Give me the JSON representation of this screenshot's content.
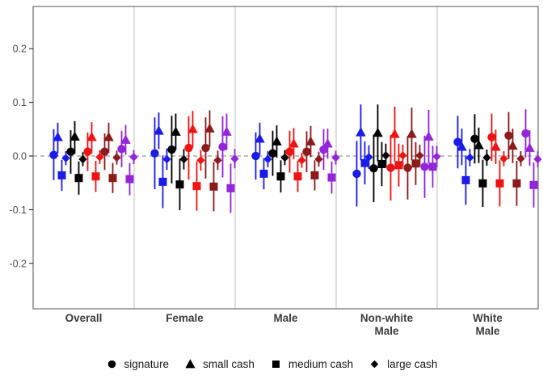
{
  "figure": {
    "background": "#ffffff",
    "panel_border_color": "#6e6e6e",
    "facet_divider_color": "#d9d9d9",
    "zero_line_color": "#999999",
    "tick_label_color": "#4a4a4a",
    "facet_label_color": "#3c3c3c"
  },
  "y_axis": {
    "tick_labels": [
      "0.2",
      "0.1",
      "0.0",
      "-0.1",
      "-0.2"
    ],
    "tick_values": [
      0.2,
      0.1,
      0.0,
      -0.1,
      -0.2
    ]
  },
  "facet_label_lines": [
    [
      "Overall"
    ],
    [
      "Female"
    ],
    [
      "Male"
    ],
    [
      "Non-white",
      "Male"
    ],
    [
      "White",
      "Male"
    ]
  ],
  "legend": {
    "items": [
      {
        "shape": "circle",
        "icon": "circle-marker-icon",
        "label": "signature"
      },
      {
        "shape": "triangle",
        "icon": "triangle-marker-icon",
        "label": "small cash"
      },
      {
        "shape": "square",
        "icon": "square-marker-icon",
        "label": "medium cash"
      },
      {
        "shape": "diamond",
        "icon": "diamond-marker-icon",
        "label": "large cash"
      }
    ],
    "marker_color": "#000000"
  },
  "chart_data": {
    "type": "pointrange",
    "title": "",
    "xlabel": "",
    "ylabel": "",
    "ylim": [
      -0.28,
      0.28
    ],
    "y_ticks": [
      0.2,
      0.1,
      0.0,
      -0.1,
      -0.2
    ],
    "grid": false,
    "zero_reference_line": 0.0,
    "legend_position": "bottom",
    "facets": [
      "Overall",
      "Female",
      "Male",
      "Non-white Male",
      "White Male"
    ],
    "shape_order": [
      "circle",
      "triangle",
      "square",
      "diamond"
    ],
    "shape_legend": {
      "circle": "signature",
      "triangle": "small cash",
      "square": "medium cash",
      "diamond": "large cash"
    },
    "color_order": [
      "blue",
      "black",
      "red",
      "darkred",
      "purple"
    ],
    "colors": {
      "blue": "#1c1ce8",
      "black": "#000000",
      "red": "#ee1414",
      "darkred": "#8c1c1c",
      "purple": "#9326d9"
    },
    "points_format": "[estimate, ci_low, ci_high] per shape in shape_order",
    "values": {
      "Overall": {
        "blue": [
          [
            0.002,
            -0.045,
            0.05
          ],
          [
            0.035,
            0.005,
            0.062
          ],
          [
            -0.036,
            -0.065,
            -0.007
          ],
          [
            -0.004,
            -0.017,
            0.009
          ]
        ],
        "black": [
          [
            0.008,
            -0.033,
            0.048
          ],
          [
            0.036,
            0.004,
            0.065
          ],
          [
            -0.041,
            -0.072,
            -0.01
          ],
          [
            -0.006,
            -0.019,
            0.007
          ]
        ],
        "red": [
          [
            0.008,
            -0.028,
            0.044
          ],
          [
            0.035,
            0.005,
            0.063
          ],
          [
            -0.038,
            -0.067,
            -0.009
          ],
          [
            -0.002,
            -0.015,
            0.011
          ]
        ],
        "darkred": [
          [
            0.008,
            -0.026,
            0.042
          ],
          [
            0.035,
            0.006,
            0.062
          ],
          [
            -0.041,
            -0.069,
            -0.013
          ],
          [
            -0.003,
            -0.016,
            0.01
          ]
        ],
        "purple": [
          [
            0.013,
            -0.021,
            0.047
          ],
          [
            0.03,
            0.002,
            0.058
          ],
          [
            -0.043,
            -0.073,
            -0.013
          ],
          [
            -0.002,
            -0.015,
            0.011
          ]
        ]
      },
      "Female": {
        "blue": [
          [
            0.005,
            -0.062,
            0.072
          ],
          [
            0.047,
            0.013,
            0.081
          ],
          [
            -0.048,
            -0.097,
            0.001
          ],
          [
            -0.006,
            -0.026,
            0.014
          ]
        ],
        "black": [
          [
            0.012,
            -0.051,
            0.075
          ],
          [
            0.045,
            0.011,
            0.079
          ],
          [
            -0.053,
            -0.101,
            -0.005
          ],
          [
            -0.006,
            -0.025,
            0.013
          ]
        ],
        "red": [
          [
            0.015,
            -0.044,
            0.074
          ],
          [
            0.05,
            0.016,
            0.084
          ],
          [
            -0.056,
            -0.102,
            -0.01
          ],
          [
            -0.008,
            -0.027,
            0.011
          ]
        ],
        "darkred": [
          [
            0.015,
            -0.042,
            0.072
          ],
          [
            0.051,
            0.017,
            0.085
          ],
          [
            -0.057,
            -0.103,
            -0.011
          ],
          [
            -0.008,
            -0.026,
            0.01
          ]
        ],
        "purple": [
          [
            0.017,
            -0.04,
            0.074
          ],
          [
            0.045,
            0.011,
            0.079
          ],
          [
            -0.06,
            -0.106,
            -0.014
          ],
          [
            -0.005,
            -0.023,
            0.013
          ]
        ]
      },
      "Male": {
        "blue": [
          [
            0.0,
            -0.044,
            0.044
          ],
          [
            0.032,
            0.002,
            0.062
          ],
          [
            -0.033,
            -0.062,
            -0.004
          ],
          [
            -0.006,
            -0.021,
            0.009
          ]
        ],
        "black": [
          [
            0.005,
            -0.037,
            0.047
          ],
          [
            0.027,
            -0.003,
            0.057
          ],
          [
            -0.038,
            -0.068,
            -0.008
          ],
          [
            -0.003,
            -0.017,
            0.011
          ]
        ],
        "red": [
          [
            0.008,
            -0.031,
            0.047
          ],
          [
            0.023,
            -0.006,
            0.052
          ],
          [
            -0.038,
            -0.067,
            -0.009
          ],
          [
            -0.008,
            -0.022,
            0.006
          ]
        ],
        "darkred": [
          [
            0.008,
            -0.03,
            0.046
          ],
          [
            0.027,
            -0.002,
            0.056
          ],
          [
            -0.036,
            -0.064,
            -0.008
          ],
          [
            -0.006,
            -0.02,
            0.008
          ]
        ],
        "purple": [
          [
            0.012,
            -0.026,
            0.05
          ],
          [
            0.023,
            -0.005,
            0.051
          ],
          [
            -0.04,
            -0.07,
            -0.01
          ],
          [
            -0.003,
            -0.016,
            0.01
          ]
        ]
      },
      "Non-white Male": {
        "blue": [
          [
            -0.033,
            -0.094,
            0.028
          ],
          [
            0.044,
            -0.008,
            0.096
          ],
          [
            -0.013,
            -0.053,
            0.027
          ],
          [
            -0.002,
            -0.024,
            0.02
          ]
        ],
        "black": [
          [
            -0.023,
            -0.086,
            0.04
          ],
          [
            0.043,
            -0.01,
            0.096
          ],
          [
            -0.015,
            -0.056,
            0.026
          ],
          [
            0.001,
            -0.021,
            0.023
          ]
        ],
        "red": [
          [
            -0.022,
            -0.083,
            0.039
          ],
          [
            0.041,
            -0.01,
            0.092
          ],
          [
            -0.017,
            -0.057,
            0.023
          ],
          [
            0.001,
            -0.019,
            0.021
          ]
        ],
        "darkred": [
          [
            -0.022,
            -0.081,
            0.037
          ],
          [
            0.041,
            -0.008,
            0.09
          ],
          [
            -0.014,
            -0.054,
            0.026
          ],
          [
            0.001,
            -0.019,
            0.021
          ]
        ],
        "purple": [
          [
            -0.02,
            -0.078,
            0.038
          ],
          [
            0.036,
            -0.014,
            0.086
          ],
          [
            -0.02,
            -0.059,
            0.019
          ],
          [
            -0.001,
            -0.021,
            0.019
          ]
        ]
      },
      "White Male": {
        "blue": [
          [
            0.026,
            -0.023,
            0.075
          ],
          [
            0.017,
            -0.017,
            0.051
          ],
          [
            -0.045,
            -0.091,
            0.001
          ],
          [
            -0.003,
            -0.019,
            0.013
          ]
        ],
        "black": [
          [
            0.032,
            -0.014,
            0.078
          ],
          [
            0.02,
            -0.013,
            0.053
          ],
          [
            -0.051,
            -0.095,
            -0.007
          ],
          [
            -0.003,
            -0.018,
            0.012
          ]
        ],
        "red": [
          [
            0.035,
            -0.009,
            0.079
          ],
          [
            0.017,
            -0.015,
            0.049
          ],
          [
            -0.051,
            -0.094,
            -0.008
          ],
          [
            -0.005,
            -0.019,
            0.009
          ]
        ],
        "darkred": [
          [
            0.038,
            -0.006,
            0.082
          ],
          [
            0.019,
            -0.013,
            0.051
          ],
          [
            -0.051,
            -0.093,
            -0.009
          ],
          [
            -0.005,
            -0.019,
            0.009
          ]
        ],
        "purple": [
          [
            0.042,
            -0.003,
            0.087
          ],
          [
            0.015,
            -0.018,
            0.048
          ],
          [
            -0.054,
            -0.096,
            -0.012
          ],
          [
            -0.006,
            -0.021,
            0.009
          ]
        ]
      }
    }
  }
}
